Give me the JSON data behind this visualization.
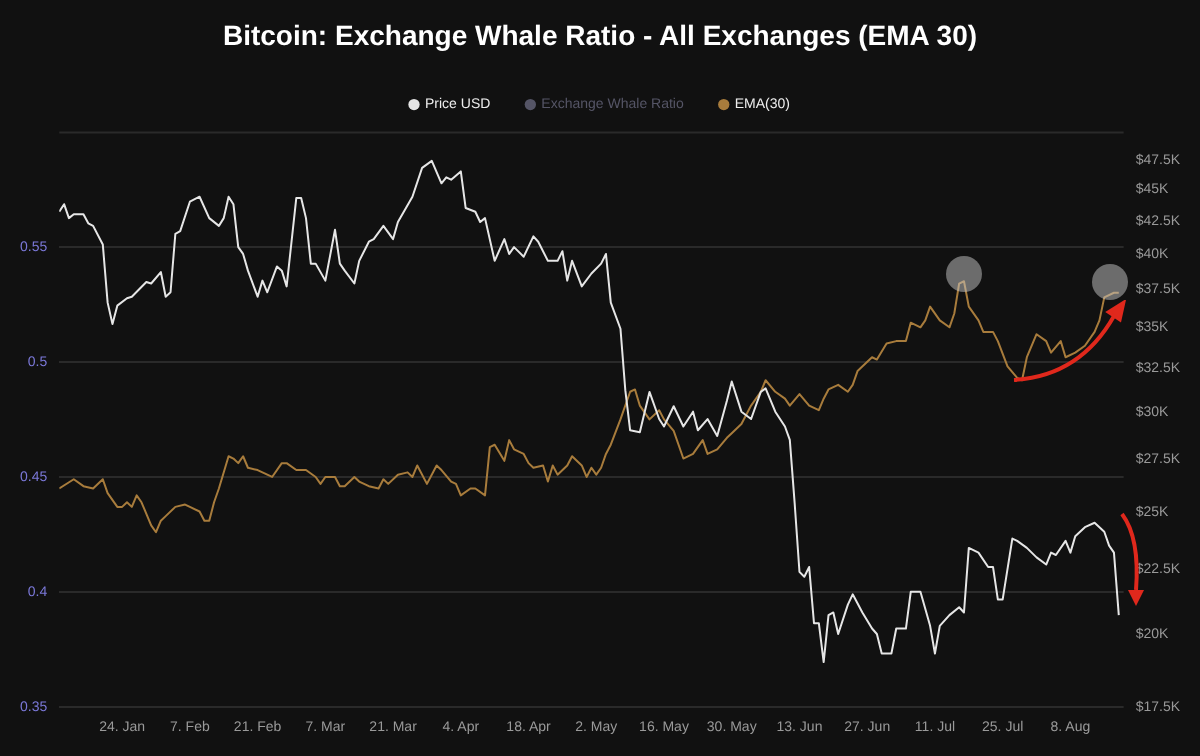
{
  "chart_data": {
    "type": "line",
    "title": "Bitcoin: Exchange Whale Ratio - All Exchanges (EMA 30)",
    "series": [
      {
        "name": "Price USD",
        "color": "#e6e6e6",
        "axis": "y2",
        "x": [
          "--01-11",
          "--01-12",
          "--01-13",
          "--01-14",
          "--01-16",
          "--01-17",
          "--01-18",
          "--01-20",
          "--01-21",
          "--01-22",
          "--01-23",
          "--01-25",
          "--01-26",
          "--01-29",
          "--01-30",
          "--02-01",
          "--02-02",
          "--02-03",
          "--02-04",
          "--02-05",
          "--02-07",
          "--02-09",
          "--02-11",
          "--02-13",
          "--02-14",
          "--02-15",
          "--02-16",
          "--02-17",
          "--02-18",
          "--02-19",
          "--02-21",
          "--02-22",
          "--02-23",
          "--02-25",
          "--02-26",
          "--02-27",
          "--03-01",
          "--03-02",
          "--03-03",
          "--03-04",
          "--03-05",
          "--03-07",
          "--03-09",
          "--03-10",
          "--03-11",
          "--03-13",
          "--03-14",
          "--03-16",
          "--03-17",
          "--03-19",
          "--03-21",
          "--03-22",
          "--03-25",
          "--03-27",
          "--03-29",
          "--03-31",
          "--04-01",
          "--04-02",
          "--04-04",
          "--04-05",
          "--04-07",
          "--04-08",
          "--04-09",
          "--04-11",
          "--04-13",
          "--04-14",
          "--04-15",
          "--04-17",
          "--04-19",
          "--04-20",
          "--04-22",
          "--04-24",
          "--04-25",
          "--04-26",
          "--04-27",
          "--04-29",
          "--05-01",
          "--05-03",
          "--05-04",
          "--05-05",
          "--05-07",
          "--05-08",
          "--05-09",
          "--05-11",
          "--05-13",
          "--05-15",
          "--05-16",
          "--05-18",
          "--05-20",
          "--05-22",
          "--05-23",
          "--05-25",
          "--05-27",
          "--05-29",
          "--05-30",
          "--06-01",
          "--06-03",
          "--06-05",
          "--06-06",
          "--06-08",
          "--06-10",
          "--06-11",
          "--06-12",
          "--06-13",
          "--06-14",
          "--06-15",
          "--06-16",
          "--06-17",
          "--06-18",
          "--06-19",
          "--06-20",
          "--06-21",
          "--06-23",
          "--06-24",
          "--06-26",
          "--06-28",
          "--06-29",
          "--06-30",
          "--07-02",
          "--07-03",
          "--07-05",
          "--07-06",
          "--07-08",
          "--07-10",
          "--07-11",
          "--07-12",
          "--07-14",
          "--07-16",
          "--07-17",
          "--07-18",
          "--07-20",
          "--07-22",
          "--07-23",
          "--07-24",
          "--07-25",
          "--07-27",
          "--07-28",
          "--07-30",
          "--08-01",
          "--08-03",
          "--08-04",
          "--08-05",
          "--08-07",
          "--08-08",
          "--08-09",
          "--08-11",
          "--08-13",
          "--08-15",
          "--08-16",
          "--08-17",
          "--08-18"
        ],
        "values": [
          43200,
          43800,
          42700,
          43000,
          43000,
          42300,
          42100,
          40700,
          36600,
          35200,
          36400,
          36900,
          37000,
          38000,
          37900,
          38700,
          37000,
          37300,
          41500,
          41700,
          44000,
          44400,
          42700,
          42100,
          42700,
          44400,
          43800,
          40500,
          40000,
          38800,
          37000,
          38100,
          37300,
          39100,
          38800,
          37700,
          44300,
          44300,
          42700,
          39300,
          39300,
          38100,
          41800,
          39300,
          38800,
          37900,
          39500,
          40900,
          41100,
          42100,
          41100,
          42400,
          44400,
          46800,
          47400,
          45500,
          46000,
          45800,
          46500,
          43500,
          43200,
          42400,
          42700,
          39500,
          41100,
          40000,
          40500,
          39800,
          41300,
          40900,
          39500,
          39500,
          40200,
          38100,
          39500,
          37700,
          38600,
          39300,
          40000,
          36600,
          34900,
          31200,
          29000,
          28900,
          31100,
          29600,
          29200,
          30300,
          29200,
          30000,
          29000,
          29600,
          28700,
          30600,
          31700,
          30000,
          29600,
          31100,
          31300,
          30000,
          29200,
          28500,
          25400,
          22400,
          22200,
          22600,
          20400,
          20400,
          19000,
          20700,
          20800,
          20000,
          21100,
          21500,
          20800,
          20200,
          20000,
          19300,
          19300,
          20200,
          20200,
          21600,
          21600,
          20300,
          19300,
          20300,
          20700,
          21000,
          20800,
          23400,
          23200,
          22600,
          22600,
          21300,
          21300,
          23800,
          23700,
          23400,
          23000,
          22700,
          23200,
          23100,
          23700,
          23200,
          23900,
          24300,
          24500,
          24100,
          23500,
          23200,
          20700
        ]
      },
      {
        "name": "Exchange Whale Ratio",
        "color": "#555566"
      },
      {
        "name": "EMA(30)",
        "color": "#a87c3c",
        "x": [
          "--01-11",
          "--01-14",
          "--01-16",
          "--01-18",
          "--01-20",
          "--01-21",
          "--01-23",
          "--01-24",
          "--01-25",
          "--01-26",
          "--01-27",
          "--01-28",
          "--01-30",
          "--01-31",
          "--02-01",
          "--02-02",
          "--02-04",
          "--02-06",
          "--02-07",
          "--02-09",
          "--02-10",
          "--02-11",
          "--02-12",
          "--02-13",
          "--02-15",
          "--02-16",
          "--02-17",
          "--02-18",
          "--02-19",
          "--02-21",
          "--02-23",
          "--02-24",
          "--02-26",
          "--02-27",
          "--03-01",
          "--03-03",
          "--03-05",
          "--03-06",
          "--03-07",
          "--03-09",
          "--03-10",
          "--03-11",
          "--03-13",
          "--03-14",
          "--03-16",
          "--03-18",
          "--03-19",
          "--03-20",
          "--03-22",
          "--03-24",
          "--03-25",
          "--03-26",
          "--03-28",
          "--03-30",
          "--03-31",
          "--04-02",
          "--04-03",
          "--04-04",
          "--04-06",
          "--04-07",
          "--04-09",
          "--04-10",
          "--04-11",
          "--04-13",
          "--04-14",
          "--04-15",
          "--04-17",
          "--04-18",
          "--04-19",
          "--04-21",
          "--04-22",
          "--04-23",
          "--04-24",
          "--04-26",
          "--04-27",
          "--04-29",
          "--04-30",
          "--05-01",
          "--05-02",
          "--05-03",
          "--05-04",
          "--05-05",
          "--05-07",
          "--05-09",
          "--05-10",
          "--05-11",
          "--05-13",
          "--05-15",
          "--05-16",
          "--05-18",
          "--05-20",
          "--05-22",
          "--05-24",
          "--05-25",
          "--05-27",
          "--05-29",
          "--05-30",
          "--06-01",
          "--06-03",
          "--06-05",
          "--06-06",
          "--06-08",
          "--06-10",
          "--06-11",
          "--06-13",
          "--06-15",
          "--06-17",
          "--06-18",
          "--06-19",
          "--06-21",
          "--06-23",
          "--06-24",
          "--06-25",
          "--06-28",
          "--06-29",
          "--07-01",
          "--07-03",
          "--07-05",
          "--07-06",
          "--07-08",
          "--07-09",
          "--07-10",
          "--07-12",
          "--07-14",
          "--07-15",
          "--07-16",
          "--07-17",
          "--07-18",
          "--07-20",
          "--07-21",
          "--07-23",
          "--07-24",
          "--07-26",
          "--07-28",
          "--07-29",
          "--07-30",
          "--08-01",
          "--08-03",
          "--08-04",
          "--08-06",
          "--08-07",
          "--08-09",
          "--08-11",
          "--08-13",
          "--08-14",
          "--08-15",
          "--08-17",
          "--08-18"
        ],
        "values": [
          0.445,
          0.449,
          0.446,
          0.445,
          0.449,
          0.443,
          0.437,
          0.437,
          0.439,
          0.437,
          0.442,
          0.439,
          0.429,
          0.426,
          0.431,
          0.433,
          0.437,
          0.438,
          0.437,
          0.435,
          0.431,
          0.431,
          0.439,
          0.445,
          0.459,
          0.458,
          0.456,
          0.459,
          0.454,
          0.453,
          0.451,
          0.45,
          0.456,
          0.456,
          0.453,
          0.453,
          0.45,
          0.447,
          0.45,
          0.45,
          0.446,
          0.446,
          0.45,
          0.448,
          0.446,
          0.445,
          0.449,
          0.447,
          0.451,
          0.452,
          0.45,
          0.455,
          0.447,
          0.455,
          0.453,
          0.448,
          0.447,
          0.442,
          0.445,
          0.445,
          0.442,
          0.463,
          0.464,
          0.457,
          0.466,
          0.462,
          0.46,
          0.456,
          0.454,
          0.455,
          0.448,
          0.455,
          0.451,
          0.455,
          0.459,
          0.455,
          0.45,
          0.454,
          0.451,
          0.454,
          0.46,
          0.464,
          0.475,
          0.487,
          0.488,
          0.481,
          0.475,
          0.479,
          0.475,
          0.47,
          0.458,
          0.46,
          0.466,
          0.46,
          0.462,
          0.467,
          0.469,
          0.473,
          0.481,
          0.487,
          0.492,
          0.487,
          0.484,
          0.481,
          0.486,
          0.481,
          0.479,
          0.484,
          0.488,
          0.49,
          0.487,
          0.49,
          0.496,
          0.502,
          0.501,
          0.508,
          0.509,
          0.509,
          0.517,
          0.515,
          0.518,
          0.524,
          0.518,
          0.515,
          0.521,
          0.534,
          0.535,
          0.524,
          0.518,
          0.513,
          0.513,
          0.509,
          0.498,
          0.493,
          0.492,
          0.502,
          0.512,
          0.509,
          0.504,
          0.509,
          0.502,
          0.504,
          0.507,
          0.513,
          0.518,
          0.528,
          0.53,
          0.53
        ]
      }
    ],
    "xlim": [
      "--01-11",
      "--08-19"
    ],
    "xticks": [
      {
        "value": "--01-24",
        "label": "24. Jan"
      },
      {
        "value": "--02-07",
        "label": "7. Feb"
      },
      {
        "value": "--02-21",
        "label": "21. Feb"
      },
      {
        "value": "--03-07",
        "label": "7. Mar"
      },
      {
        "value": "--03-21",
        "label": "21. Mar"
      },
      {
        "value": "--04-04",
        "label": "4. Apr"
      },
      {
        "value": "--04-18",
        "label": "18. Apr"
      },
      {
        "value": "--05-02",
        "label": "2. May"
      },
      {
        "value": "--05-16",
        "label": "16. May"
      },
      {
        "value": "--05-30",
        "label": "30. May"
      },
      {
        "value": "--06-13",
        "label": "13. Jun"
      },
      {
        "value": "--06-27",
        "label": "27. Jun"
      },
      {
        "value": "--07-11",
        "label": "11. Jul"
      },
      {
        "value": "--07-25",
        "label": "25. Jul"
      },
      {
        "value": "--08-08",
        "label": "8. Aug"
      }
    ],
    "ylim": [
      0.35,
      0.6
    ],
    "yticks": [
      0.35,
      0.4,
      0.45,
      0.5,
      0.55
    ],
    "y2lim": [
      17500,
      50000
    ],
    "y2ticks": [
      {
        "value": 17500,
        "label": "$17.5K"
      },
      {
        "value": 20000,
        "label": "$20K"
      },
      {
        "value": 22500,
        "label": "$22.5K"
      },
      {
        "value": 25000,
        "label": "$25K"
      },
      {
        "value": 27500,
        "label": "$27.5K"
      },
      {
        "value": 30000,
        "label": "$30K"
      },
      {
        "value": 32500,
        "label": "$32.5K"
      },
      {
        "value": 35000,
        "label": "$35K"
      },
      {
        "value": 37500,
        "label": "$37.5K"
      },
      {
        "value": 40000,
        "label": "$40K"
      },
      {
        "value": 42500,
        "label": "$42.5K"
      },
      {
        "value": 45000,
        "label": "$45K"
      },
      {
        "value": 47500,
        "label": "$47.5K"
      }
    ],
    "log": "y2",
    "grid": "y",
    "legend": "top",
    "line_style": "solid"
  }
}
